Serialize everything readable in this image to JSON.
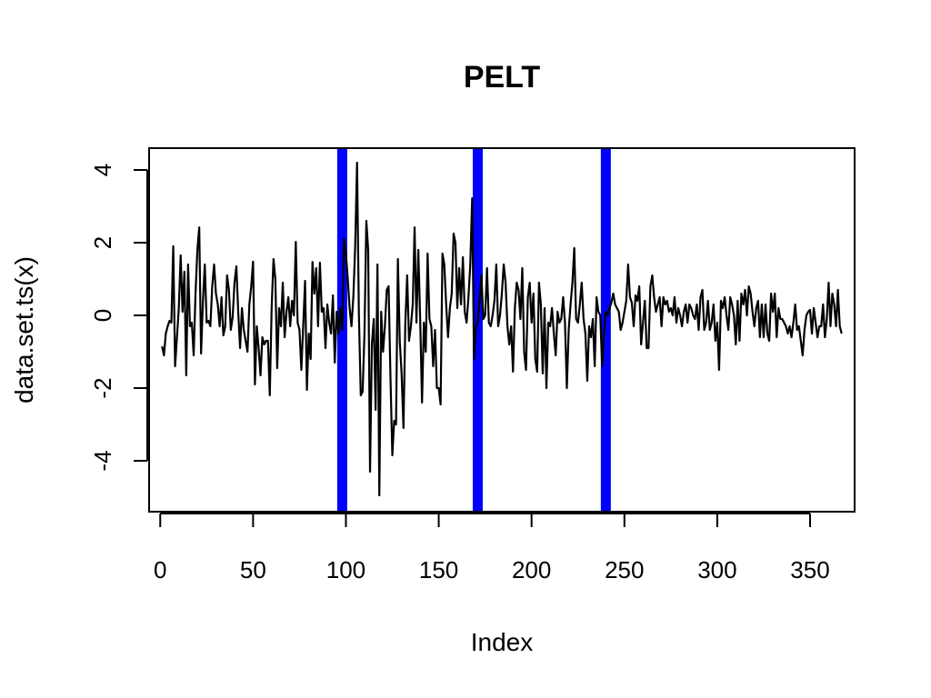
{
  "chart_data": {
    "type": "line",
    "title": "PELT",
    "xlabel": "Index",
    "ylabel": "data.set.ts(x)",
    "xlim": [
      -6,
      374
    ],
    "ylim": [
      -5.4,
      4.6
    ],
    "xticks": [
      0,
      50,
      100,
      150,
      200,
      250,
      300,
      350
    ],
    "yticks": [
      -4,
      -2,
      0,
      2,
      4
    ],
    "grid": false,
    "series": [
      {
        "color": "#000000",
        "x_start": 1,
        "x_step": 1,
        "values": [
          -0.85,
          -1.1,
          -0.5,
          -0.3,
          -0.15,
          -0.2,
          1.9,
          -1.4,
          -0.6,
          0.2,
          1.65,
          0.1,
          1.2,
          -1.65,
          1.4,
          -0.3,
          -0.2,
          -1.1,
          0.6,
          1.8,
          2.42,
          -1.05,
          0.4,
          1.4,
          -0.2,
          -0.15,
          -0.3,
          0.8,
          1.4,
          0.6,
          0.3,
          -0.3,
          0.5,
          -0.55,
          -0.3,
          1.1,
          0.7,
          -0.4,
          -0.05,
          0.9,
          1.35,
          0.1,
          -0.9,
          0.2,
          -0.4,
          -0.7,
          -1.0,
          0.3,
          0.8,
          1.48,
          -1.9,
          -0.3,
          -0.9,
          -1.65,
          -0.6,
          -0.8,
          -0.7,
          -0.7,
          -2.2,
          0.2,
          1.55,
          1.0,
          -1.45,
          0.2,
          -0.3,
          0.9,
          -0.6,
          0.1,
          0.5,
          -0.3,
          0.4,
          0.0,
          2.02,
          -0.2,
          -0.4,
          -1.5,
          -0.3,
          0.95,
          -2.05,
          -0.5,
          -1.2,
          1.47,
          0.6,
          1.3,
          -0.3,
          1.45,
          0.1,
          0.2,
          -0.9,
          0.3,
          -0.2,
          -0.5,
          0.55,
          -1.3,
          0.1,
          -0.5,
          0.2,
          -0.4,
          2.1,
          1.7,
          1.0,
          0.2,
          -0.3,
          0.5,
          1.9,
          4.2,
          0.0,
          -2.2,
          -2.1,
          -0.5,
          2.6,
          1.8,
          -4.3,
          -0.8,
          -0.1,
          -2.6,
          1.4,
          -4.95,
          0.1,
          -1.0,
          -0.3,
          0.7,
          0.8,
          -1.7,
          -3.85,
          -2.9,
          -3.0,
          1.55,
          -0.7,
          -1.6,
          -3.1,
          -0.2,
          1.1,
          -0.7,
          -0.3,
          0.3,
          2.42,
          -0.2,
          1.8,
          -0.1,
          -2.4,
          -0.2,
          -1.0,
          1.7,
          -0.1,
          -0.3,
          -1.4,
          -0.4,
          -2.0,
          -2.0,
          -2.45,
          1.7,
          1.4,
          0.3,
          -0.6,
          0.2,
          0.6,
          2.25,
          2.0,
          0.2,
          1.3,
          0.3,
          1.6,
          0.1,
          -0.2,
          0.5,
          1.4,
          3.22,
          -1.2,
          -0.3,
          -0.2,
          0.4,
          1.1,
          -0.1,
          0.0,
          1.3,
          -0.2,
          -0.3,
          0.0,
          0.4,
          1.4,
          -0.3,
          0.0,
          0.6,
          1.4,
          0.9,
          -0.3,
          -0.8,
          -0.3,
          -1.55,
          0.2,
          0.9,
          0.7,
          -0.1,
          1.3,
          -1.0,
          -1.5,
          0.5,
          0.9,
          -0.2,
          0.6,
          -1.2,
          -1.55,
          0.9,
          0.3,
          -1.6,
          0.2,
          -2.0,
          -0.2,
          -0.3,
          0.2,
          -0.5,
          -1.1,
          0.1,
          -0.2,
          -0.1,
          0.5,
          -0.2,
          -2.0,
          -0.4,
          0.3,
          0.9,
          1.85,
          -0.1,
          -0.2,
          0.3,
          0.9,
          -0.1,
          -0.5,
          -1.8,
          -0.3,
          -0.6,
          -0.1,
          -1.4,
          0.5,
          0.1,
          0.0,
          -1.4,
          -0.5,
          0.1,
          0.0,
          0.2,
          0.35,
          0.6,
          0.3,
          0.2,
          0.1,
          -0.4,
          -0.2,
          0.1,
          0.4,
          1.4,
          0.5,
          0.35,
          -0.3,
          0.55,
          0.4,
          0.8,
          -0.8,
          -0.2,
          0.4,
          -0.9,
          -0.9,
          0.8,
          1.1,
          0.5,
          0.1,
          0.3,
          0.5,
          -0.3,
          0.5,
          0.3,
          0.4,
          0.1,
          0.2,
          0.0,
          0.5,
          -0.2,
          0.2,
          0.0,
          -0.3,
          0.1,
          0.3,
          -0.2,
          0.3,
          0.2,
          0.0,
          -0.1,
          0.3,
          -0.4,
          0.5,
          0.7,
          -0.4,
          -0.2,
          0.4,
          -0.4,
          -0.2,
          0.3,
          -0.7,
          -0.2,
          -1.5,
          0.4,
          0.2,
          0.5,
          0.0,
          -0.4,
          0.5,
          0.3,
          0.0,
          -0.8,
          0.4,
          -0.7,
          0.6,
          0.3,
          0.7,
          0.0,
          0.8,
          0.6,
          0.1,
          -0.3,
          0.2,
          0.4,
          -0.6,
          0.3,
          -0.6,
          0.3,
          -0.5,
          -0.7,
          0.6,
          0.1,
          0.6,
          -0.6,
          0.2,
          -0.1,
          -0.1,
          -0.2,
          -0.3,
          -0.5,
          -0.3,
          -0.6,
          -0.2,
          0.3,
          -0.4,
          -0.3,
          -0.7,
          -1.1,
          -0.4,
          0.0,
          0.1,
          0.15,
          -0.5,
          0.2,
          -0.2,
          -0.6,
          -0.3,
          -0.3,
          0.3,
          -0.6,
          -0.1,
          0.9,
          -0.3,
          0.6,
          0.3,
          -0.3,
          0.7,
          -0.3,
          -0.5
        ]
      }
    ],
    "changepoints": [
      98,
      171,
      240
    ],
    "changepoint_color": "#0000ff"
  }
}
